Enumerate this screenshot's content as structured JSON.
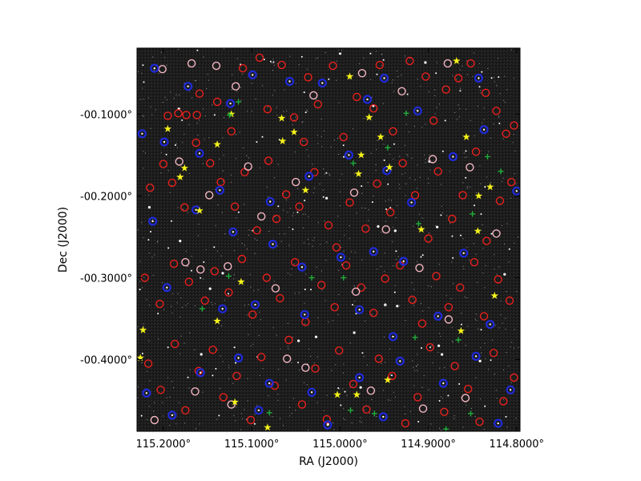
{
  "chart_data": {
    "type": "scatter",
    "title": "",
    "xlabel": "RA (J2000)",
    "ylabel": "Dec (J2000)",
    "x_axis_inverted": true,
    "xlim": [
      115.2298,
      114.7962
    ],
    "ylim": [
      -0.4877,
      -0.0193
    ],
    "x_ticks": [
      115.2,
      115.1,
      115.0,
      114.9,
      114.8
    ],
    "x_tick_labels": [
      "115.2000°",
      "115.1000°",
      "115.0000°",
      "114.9000°",
      "114.8000°"
    ],
    "y_ticks": [
      -0.1,
      -0.2,
      -0.3,
      -0.4
    ],
    "y_tick_labels": [
      "-00.1000°",
      "-00.2000°",
      "-00.3000°",
      "-00.4000°"
    ],
    "grid": false,
    "legend": "none",
    "background": "grayscale star-field image",
    "series": [
      {
        "marker": "red open circle",
        "color": "#e8201c",
        "points": [
          [
            115.195,
            -0.102
          ],
          [
            115.183,
            -0.099
          ],
          [
            115.174,
            -0.101
          ],
          [
            115.162,
            -0.101
          ],
          [
            115.159,
            -0.075
          ],
          [
            115.139,
            -0.085
          ],
          [
            115.123,
            -0.121
          ],
          [
            115.11,
            -0.044
          ],
          [
            115.091,
            -0.031
          ],
          [
            115.082,
            -0.094
          ],
          [
            115.066,
            -0.04
          ],
          [
            115.052,
            -0.104
          ],
          [
            115.041,
            -0.134
          ],
          [
            115.036,
            -0.055
          ],
          [
            115.025,
            -0.088
          ],
          [
            115.008,
            -0.041
          ],
          [
            114.996,
            -0.128
          ],
          [
            114.981,
            -0.079
          ],
          [
            114.962,
            -0.093
          ],
          [
            114.955,
            -0.04
          ],
          [
            114.94,
            -0.121
          ],
          [
            114.921,
            -0.035
          ],
          [
            114.903,
            -0.054
          ],
          [
            114.894,
            -0.108
          ],
          [
            114.88,
            -0.07
          ],
          [
            114.866,
            -0.056
          ],
          [
            114.852,
            -0.038
          ],
          [
            114.835,
            -0.074
          ],
          [
            114.823,
            -0.096
          ],
          [
            114.812,
            -0.124
          ],
          [
            114.803,
            -0.114
          ],
          [
            115.215,
            -0.19
          ],
          [
            115.2,
            -0.161
          ],
          [
            115.19,
            -0.184
          ],
          [
            115.176,
            -0.214
          ],
          [
            115.163,
            -0.135
          ],
          [
            115.147,
            -0.16
          ],
          [
            115.135,
            -0.183
          ],
          [
            115.119,
            -0.213
          ],
          [
            115.108,
            -0.171
          ],
          [
            115.094,
            -0.242
          ],
          [
            115.081,
            -0.157
          ],
          [
            115.072,
            -0.228
          ],
          [
            115.061,
            -0.198
          ],
          [
            115.046,
            -0.213
          ],
          [
            115.029,
            -0.171
          ],
          [
            115.013,
            -0.236
          ],
          [
            115.004,
            -0.263
          ],
          [
            114.989,
            -0.208
          ],
          [
            114.971,
            -0.24
          ],
          [
            114.958,
            -0.185
          ],
          [
            114.943,
            -0.22
          ],
          [
            114.929,
            -0.16
          ],
          [
            114.915,
            -0.199
          ],
          [
            114.9,
            -0.252
          ],
          [
            114.889,
            -0.17
          ],
          [
            114.873,
            -0.228
          ],
          [
            114.861,
            -0.199
          ],
          [
            114.846,
            -0.146
          ],
          [
            114.834,
            -0.255
          ],
          [
            114.819,
            -0.206
          ],
          [
            114.806,
            -0.183
          ],
          [
            115.221,
            -0.3
          ],
          [
            115.204,
            -0.332
          ],
          [
            115.188,
            -0.283
          ],
          [
            115.171,
            -0.305
          ],
          [
            115.153,
            -0.328
          ],
          [
            115.142,
            -0.292
          ],
          [
            115.126,
            -0.318
          ],
          [
            115.111,
            -0.277
          ],
          [
            115.099,
            -0.345
          ],
          [
            115.083,
            -0.3
          ],
          [
            115.068,
            -0.325
          ],
          [
            115.051,
            -0.281
          ],
          [
            115.039,
            -0.354
          ],
          [
            115.021,
            -0.309
          ],
          [
            115.006,
            -0.336
          ],
          [
            114.993,
            -0.285
          ],
          [
            114.976,
            -0.312
          ],
          [
            114.962,
            -0.343
          ],
          [
            114.949,
            -0.301
          ],
          [
            114.932,
            -0.285
          ],
          [
            114.918,
            -0.327
          ],
          [
            114.907,
            -0.356
          ],
          [
            114.891,
            -0.298
          ],
          [
            114.877,
            -0.336
          ],
          [
            114.864,
            -0.312
          ],
          [
            114.848,
            -0.281
          ],
          [
            114.837,
            -0.347
          ],
          [
            114.821,
            -0.302
          ],
          [
            114.808,
            -0.328
          ],
          [
            115.217,
            -0.405
          ],
          [
            115.203,
            -0.437
          ],
          [
            115.187,
            -0.381
          ],
          [
            115.175,
            -0.462
          ],
          [
            115.16,
            -0.414
          ],
          [
            115.144,
            -0.388
          ],
          [
            115.132,
            -0.446
          ],
          [
            115.117,
            -0.42
          ],
          [
            115.101,
            -0.474
          ],
          [
            115.089,
            -0.397
          ],
          [
            115.074,
            -0.432
          ],
          [
            115.058,
            -0.376
          ],
          [
            115.043,
            -0.455
          ],
          [
            115.028,
            -0.411
          ],
          [
            115.015,
            -0.473
          ],
          [
            115.001,
            -0.389
          ],
          [
            114.985,
            -0.43
          ],
          [
            114.97,
            -0.461
          ],
          [
            114.956,
            -0.399
          ],
          [
            114.941,
            -0.42
          ],
          [
            114.926,
            -0.478
          ],
          [
            114.912,
            -0.446
          ],
          [
            114.898,
            -0.385
          ],
          [
            114.882,
            -0.464
          ],
          [
            114.87,
            -0.408
          ],
          [
            114.855,
            -0.436
          ],
          [
            114.842,
            -0.476
          ],
          [
            114.826,
            -0.392
          ],
          [
            114.815,
            -0.451
          ],
          [
            114.803,
            -0.422
          ]
        ]
      },
      {
        "marker": "pink open circle",
        "color": "#f4b6c2",
        "points": [
          [
            115.201,
            -0.045
          ],
          [
            115.168,
            -0.038
          ],
          [
            115.14,
            -0.041
          ],
          [
            115.118,
            -0.066
          ],
          [
            115.03,
            -0.077
          ],
          [
            114.975,
            -0.05
          ],
          [
            114.93,
            -0.072
          ],
          [
            114.878,
            -0.038
          ],
          [
            115.182,
            -0.158
          ],
          [
            115.148,
            -0.199
          ],
          [
            115.104,
            -0.164
          ],
          [
            115.089,
            -0.225
          ],
          [
            115.05,
            -0.183
          ],
          [
            114.984,
            -0.196
          ],
          [
            114.948,
            -0.241
          ],
          [
            114.895,
            -0.155
          ],
          [
            114.853,
            -0.165
          ],
          [
            114.823,
            -0.246
          ],
          [
            115.175,
            -0.281
          ],
          [
            115.158,
            -0.29
          ],
          [
            115.127,
            -0.286
          ],
          [
            115.073,
            -0.313
          ],
          [
            114.982,
            -0.317
          ],
          [
            114.91,
            -0.288
          ],
          [
            114.877,
            -0.351
          ],
          [
            115.21,
            -0.474
          ],
          [
            115.164,
            -0.439
          ],
          [
            115.123,
            -0.455
          ],
          [
            115.06,
            -0.399
          ],
          [
            115.039,
            -0.41
          ],
          [
            114.965,
            -0.438
          ],
          [
            114.906,
            -0.46
          ],
          [
            114.858,
            -0.447
          ]
        ]
      },
      {
        "marker": "blue filled circle",
        "color": "#1f2ad8",
        "points": [
          [
            115.21,
            -0.044
          ],
          [
            115.172,
            -0.066
          ],
          [
            115.124,
            -0.087
          ],
          [
            115.099,
            -0.052
          ],
          [
            115.057,
            -0.06
          ],
          [
            115.02,
            -0.062
          ],
          [
            114.969,
            -0.082
          ],
          [
            114.95,
            -0.056
          ],
          [
            114.912,
            -0.096
          ],
          [
            114.843,
            -0.056
          ],
          [
            115.224,
            -0.124
          ],
          [
            115.199,
            -0.134
          ],
          [
            115.159,
            -0.148
          ],
          [
            115.136,
            -0.193
          ],
          [
            115.079,
            -0.207
          ],
          [
            115.035,
            -0.176
          ],
          [
            114.99,
            -0.15
          ],
          [
            114.947,
            -0.169
          ],
          [
            114.919,
            -0.208
          ],
          [
            114.872,
            -0.152
          ],
          [
            114.837,
            -0.119
          ],
          [
            114.8,
            -0.194
          ],
          [
            115.212,
            -0.231
          ],
          [
            115.163,
            -0.217
          ],
          [
            115.121,
            -0.244
          ],
          [
            115.076,
            -0.259
          ],
          [
            115.043,
            -0.287
          ],
          [
            114.999,
            -0.275
          ],
          [
            114.962,
            -0.268
          ],
          [
            114.928,
            -0.28
          ],
          [
            114.86,
            -0.27
          ],
          [
            115.196,
            -0.312
          ],
          [
            115.133,
            -0.338
          ],
          [
            115.096,
            -0.333
          ],
          [
            115.04,
            -0.345
          ],
          [
            114.978,
            -0.339
          ],
          [
            114.94,
            -0.372
          ],
          [
            114.889,
            -0.347
          ],
          [
            114.83,
            -0.357
          ],
          [
            115.219,
            -0.441
          ],
          [
            115.158,
            -0.416
          ],
          [
            115.115,
            -0.398
          ],
          [
            115.08,
            -0.429
          ],
          [
            115.032,
            -0.44
          ],
          [
            114.978,
            -0.422
          ],
          [
            114.932,
            -0.402
          ],
          [
            114.883,
            -0.429
          ],
          [
            114.846,
            -0.396
          ],
          [
            114.807,
            -0.437
          ],
          [
            115.19,
            -0.468
          ],
          [
            115.092,
            -0.462
          ],
          [
            115.014,
            -0.48
          ],
          [
            114.951,
            -0.47
          ],
          [
            114.821,
            -0.478
          ]
        ]
      },
      {
        "marker": "yellow star",
        "color": "#f4f21a",
        "points": [
          [
            115.195,
            -0.118
          ],
          [
            115.176,
            -0.166
          ],
          [
            115.181,
            -0.177
          ],
          [
            115.159,
            -0.218
          ],
          [
            115.139,
            -0.137
          ],
          [
            115.123,
            -0.1
          ],
          [
            115.066,
            -0.105
          ],
          [
            115.065,
            -0.133
          ],
          [
            115.052,
            -0.122
          ],
          [
            115.039,
            -0.193
          ],
          [
            114.989,
            -0.054
          ],
          [
            114.979,
            -0.173
          ],
          [
            114.976,
            -0.15
          ],
          [
            114.967,
            -0.104
          ],
          [
            114.954,
            -0.128
          ],
          [
            114.944,
            -0.165
          ],
          [
            114.908,
            -0.241
          ],
          [
            114.868,
            -0.035
          ],
          [
            114.857,
            -0.128
          ],
          [
            114.843,
            -0.2
          ],
          [
            114.844,
            -0.243
          ],
          [
            114.83,
            -0.189
          ],
          [
            114.825,
            -0.322
          ],
          [
            114.863,
            -0.365
          ],
          [
            115.139,
            -0.353
          ],
          [
            115.112,
            -0.305
          ],
          [
            115.223,
            -0.364
          ],
          [
            115.226,
            -0.398
          ],
          [
            115.119,
            -0.452
          ],
          [
            115.003,
            -0.443
          ],
          [
            114.981,
            -0.443
          ],
          [
            114.946,
            -0.425
          ],
          [
            115.082,
            -0.483
          ]
        ]
      },
      {
        "marker": "green plus",
        "color": "#1fae3a",
        "points": [
          [
            115.125,
            -0.101
          ],
          [
            115.115,
            -0.085
          ],
          [
            114.985,
            -0.16
          ],
          [
            114.946,
            -0.141
          ],
          [
            114.925,
            -0.099
          ],
          [
            114.911,
            -0.234
          ],
          [
            114.85,
            -0.222
          ],
          [
            114.833,
            -0.152
          ],
          [
            114.818,
            -0.17
          ],
          [
            115.156,
            -0.338
          ],
          [
            115.126,
            -0.298
          ],
          [
            115.032,
            -0.3
          ],
          [
            114.996,
            -0.3
          ],
          [
            114.915,
            -0.373
          ],
          [
            114.866,
            -0.376
          ],
          [
            115.08,
            -0.465
          ],
          [
            114.988,
            -0.462
          ],
          [
            114.961,
            -0.466
          ],
          [
            114.88,
            -0.485
          ],
          [
            114.852,
            -0.466
          ]
        ]
      }
    ]
  }
}
